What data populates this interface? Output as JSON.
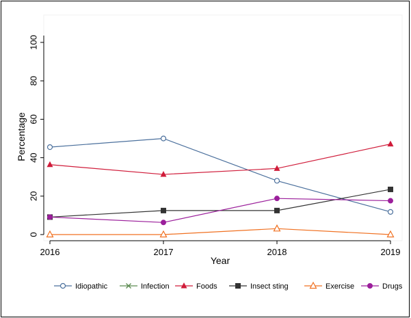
{
  "chart_data": {
    "type": "line",
    "title": "",
    "xlabel": "Year",
    "ylabel": "Percentage",
    "x": [
      2016,
      2017,
      2018,
      2019
    ],
    "xticks": [
      "2016",
      "2017",
      "2018",
      "2019"
    ],
    "yticks": [
      "0",
      "20",
      "40",
      "60",
      "80",
      "100"
    ],
    "ylim": [
      0,
      100
    ],
    "grid": false,
    "legend_position": "bottom",
    "series": [
      {
        "name": "Idiopathic",
        "values": [
          45.5,
          50.0,
          28.0,
          11.8
        ],
        "color": "#4a6f9c",
        "marker": "circle-open"
      },
      {
        "name": "Infection",
        "values": [
          null,
          null,
          null,
          null
        ],
        "color": "#5a8a4f",
        "marker": "x"
      },
      {
        "name": "Foods",
        "values": [
          36.4,
          31.3,
          34.4,
          47.1
        ],
        "color": "#d01c3a",
        "marker": "triangle"
      },
      {
        "name": "Insect sting",
        "values": [
          9.1,
          12.5,
          12.5,
          23.5
        ],
        "color": "#333333",
        "marker": "square"
      },
      {
        "name": "Exercise",
        "values": [
          0,
          0,
          3.1,
          0
        ],
        "color": "#f07020",
        "marker": "triangle-open"
      },
      {
        "name": "Drugs",
        "values": [
          9.1,
          6.3,
          18.8,
          17.6
        ],
        "color": "#9b1f9b",
        "marker": "circle"
      }
    ]
  }
}
